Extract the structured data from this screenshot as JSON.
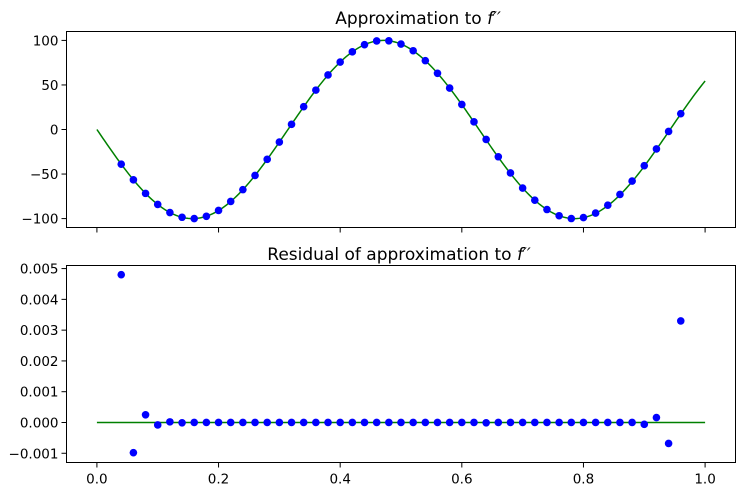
{
  "chart_data": [
    {
      "type": "line",
      "title": "Approximation to f′′",
      "title_text": "Approximation to ",
      "title_math": "f′′",
      "xlabel": "",
      "ylabel": "",
      "xlim": [
        -0.05,
        1.05
      ],
      "ylim": [
        -110,
        110
      ],
      "x_ticks": [
        0.0,
        0.2,
        0.4,
        0.6,
        0.8,
        1.0
      ],
      "x_tick_labels_visible": false,
      "y_ticks": [
        100,
        50,
        0,
        -50,
        -100
      ],
      "y_tick_labels": [
        "100",
        "50",
        "0",
        "−50",
        "−100"
      ],
      "grid": false,
      "legend": "none",
      "series": [
        {
          "kind": "line",
          "color": "#008000",
          "function": "sin",
          "amplitude": -100,
          "frequency": 10,
          "x_range": [
            0,
            1
          ]
        },
        {
          "kind": "points",
          "color": "#0000ff",
          "x": [
            0.04,
            0.06,
            0.08,
            0.1,
            0.12,
            0.14,
            0.16,
            0.18,
            0.2,
            0.22,
            0.24,
            0.26,
            0.28,
            0.3,
            0.32,
            0.34,
            0.36,
            0.38,
            0.4,
            0.42,
            0.44,
            0.46,
            0.48,
            0.5,
            0.52,
            0.54,
            0.56,
            0.58,
            0.6,
            0.62,
            0.64,
            0.66,
            0.68,
            0.7,
            0.72,
            0.74,
            0.76,
            0.78,
            0.8,
            0.82,
            0.84,
            0.86,
            0.88,
            0.9,
            0.92,
            0.94,
            0.96
          ],
          "y": [
            -38.9,
            -56.5,
            -71.7,
            -84.1,
            -93.2,
            -98.5,
            -99.96,
            -97.4,
            -90.9,
            -80.8,
            -67.5,
            -51.6,
            -33.5,
            -14.1,
            5.8,
            25.6,
            44.2,
            61.2,
            75.7,
            87.2,
            95.2,
            99.4,
            99.6,
            95.9,
            88.4,
            77.3,
            63.1,
            46.5,
            28.1,
            8.6,
            -11.2,
            -30.6,
            -48.8,
            -65.7,
            -79.3,
            -89.8,
            -96.8,
            -99.9,
            -98.9,
            -93.8,
            -85.0,
            -72.9,
            -57.9,
            -40.6,
            -21.8,
            -2.2,
            17.8
          ]
        }
      ]
    },
    {
      "type": "scatter",
      "title": "Residual of approximation to f′′",
      "title_text": "Residual of approximation to ",
      "title_math": "f′′",
      "xlabel": "",
      "ylabel": "",
      "xlim": [
        -0.05,
        1.05
      ],
      "ylim": [
        -0.0013,
        0.0051
      ],
      "x_ticks": [
        0.0,
        0.2,
        0.4,
        0.6,
        0.8,
        1.0
      ],
      "x_tick_labels": [
        "0.0",
        "0.2",
        "0.4",
        "0.6",
        "0.8",
        "1.0"
      ],
      "y_ticks": [
        0.005,
        0.004,
        0.003,
        0.002,
        0.001,
        0.0,
        -0.001
      ],
      "y_tick_labels": [
        "0.005",
        "0.004",
        "0.003",
        "0.002",
        "0.001",
        "0.000",
        "−0.001"
      ],
      "grid": false,
      "legend": "none",
      "series": [
        {
          "kind": "line",
          "color": "#008000",
          "x": [
            0,
            1
          ],
          "y": [
            0,
            0
          ]
        },
        {
          "kind": "points",
          "color": "#0000ff",
          "x": [
            0.04,
            0.06,
            0.08,
            0.1,
            0.12,
            0.14,
            0.16,
            0.18,
            0.2,
            0.22,
            0.24,
            0.26,
            0.28,
            0.3,
            0.32,
            0.34,
            0.36,
            0.38,
            0.4,
            0.42,
            0.44,
            0.46,
            0.48,
            0.5,
            0.52,
            0.54,
            0.56,
            0.58,
            0.6,
            0.62,
            0.64,
            0.66,
            0.68,
            0.7,
            0.72,
            0.74,
            0.76,
            0.78,
            0.8,
            0.82,
            0.84,
            0.86,
            0.88,
            0.9,
            0.92,
            0.94,
            0.96
          ],
          "y": [
            0.0048,
            -0.00098,
            0.00025,
            -8e-05,
            2e-05,
            -1e-05,
            0,
            0,
            0,
            0,
            0,
            0,
            0,
            0,
            0,
            0,
            0,
            0,
            0,
            0,
            0,
            0,
            0,
            0,
            0,
            0,
            0,
            0,
            0,
            0,
            -1e-05,
            0,
            0,
            0,
            0,
            0,
            0,
            0,
            0,
            0,
            0,
            0,
            0,
            -6e-05,
            0.00016,
            -0.00068,
            0.0033
          ]
        }
      ]
    }
  ]
}
